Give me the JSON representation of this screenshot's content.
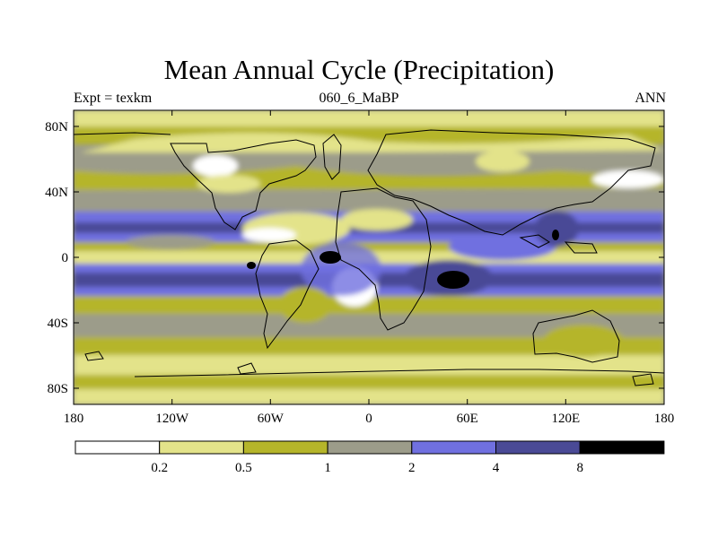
{
  "title": "Mean Annual Cycle (Precipitation)",
  "subtitle_left": "Expt = texkm",
  "subtitle_center": "060_6_MaBP",
  "subtitle_right": "ANN",
  "map": {
    "lat_ticks": [
      "80N",
      "40N",
      "0",
      "40S",
      "80S"
    ],
    "lon_ticks": [
      "180",
      "120W",
      "60W",
      "0",
      "60E",
      "120E",
      "180"
    ]
  },
  "colorbar": {
    "levels": [
      "0.2",
      "0.5",
      "1",
      "2",
      "4",
      "8"
    ],
    "colors": [
      "#ffffff",
      "#e3e38a",
      "#b5b52a",
      "#9c9c8a",
      "#7070e0",
      "#4a4a96",
      "#000000"
    ]
  }
}
